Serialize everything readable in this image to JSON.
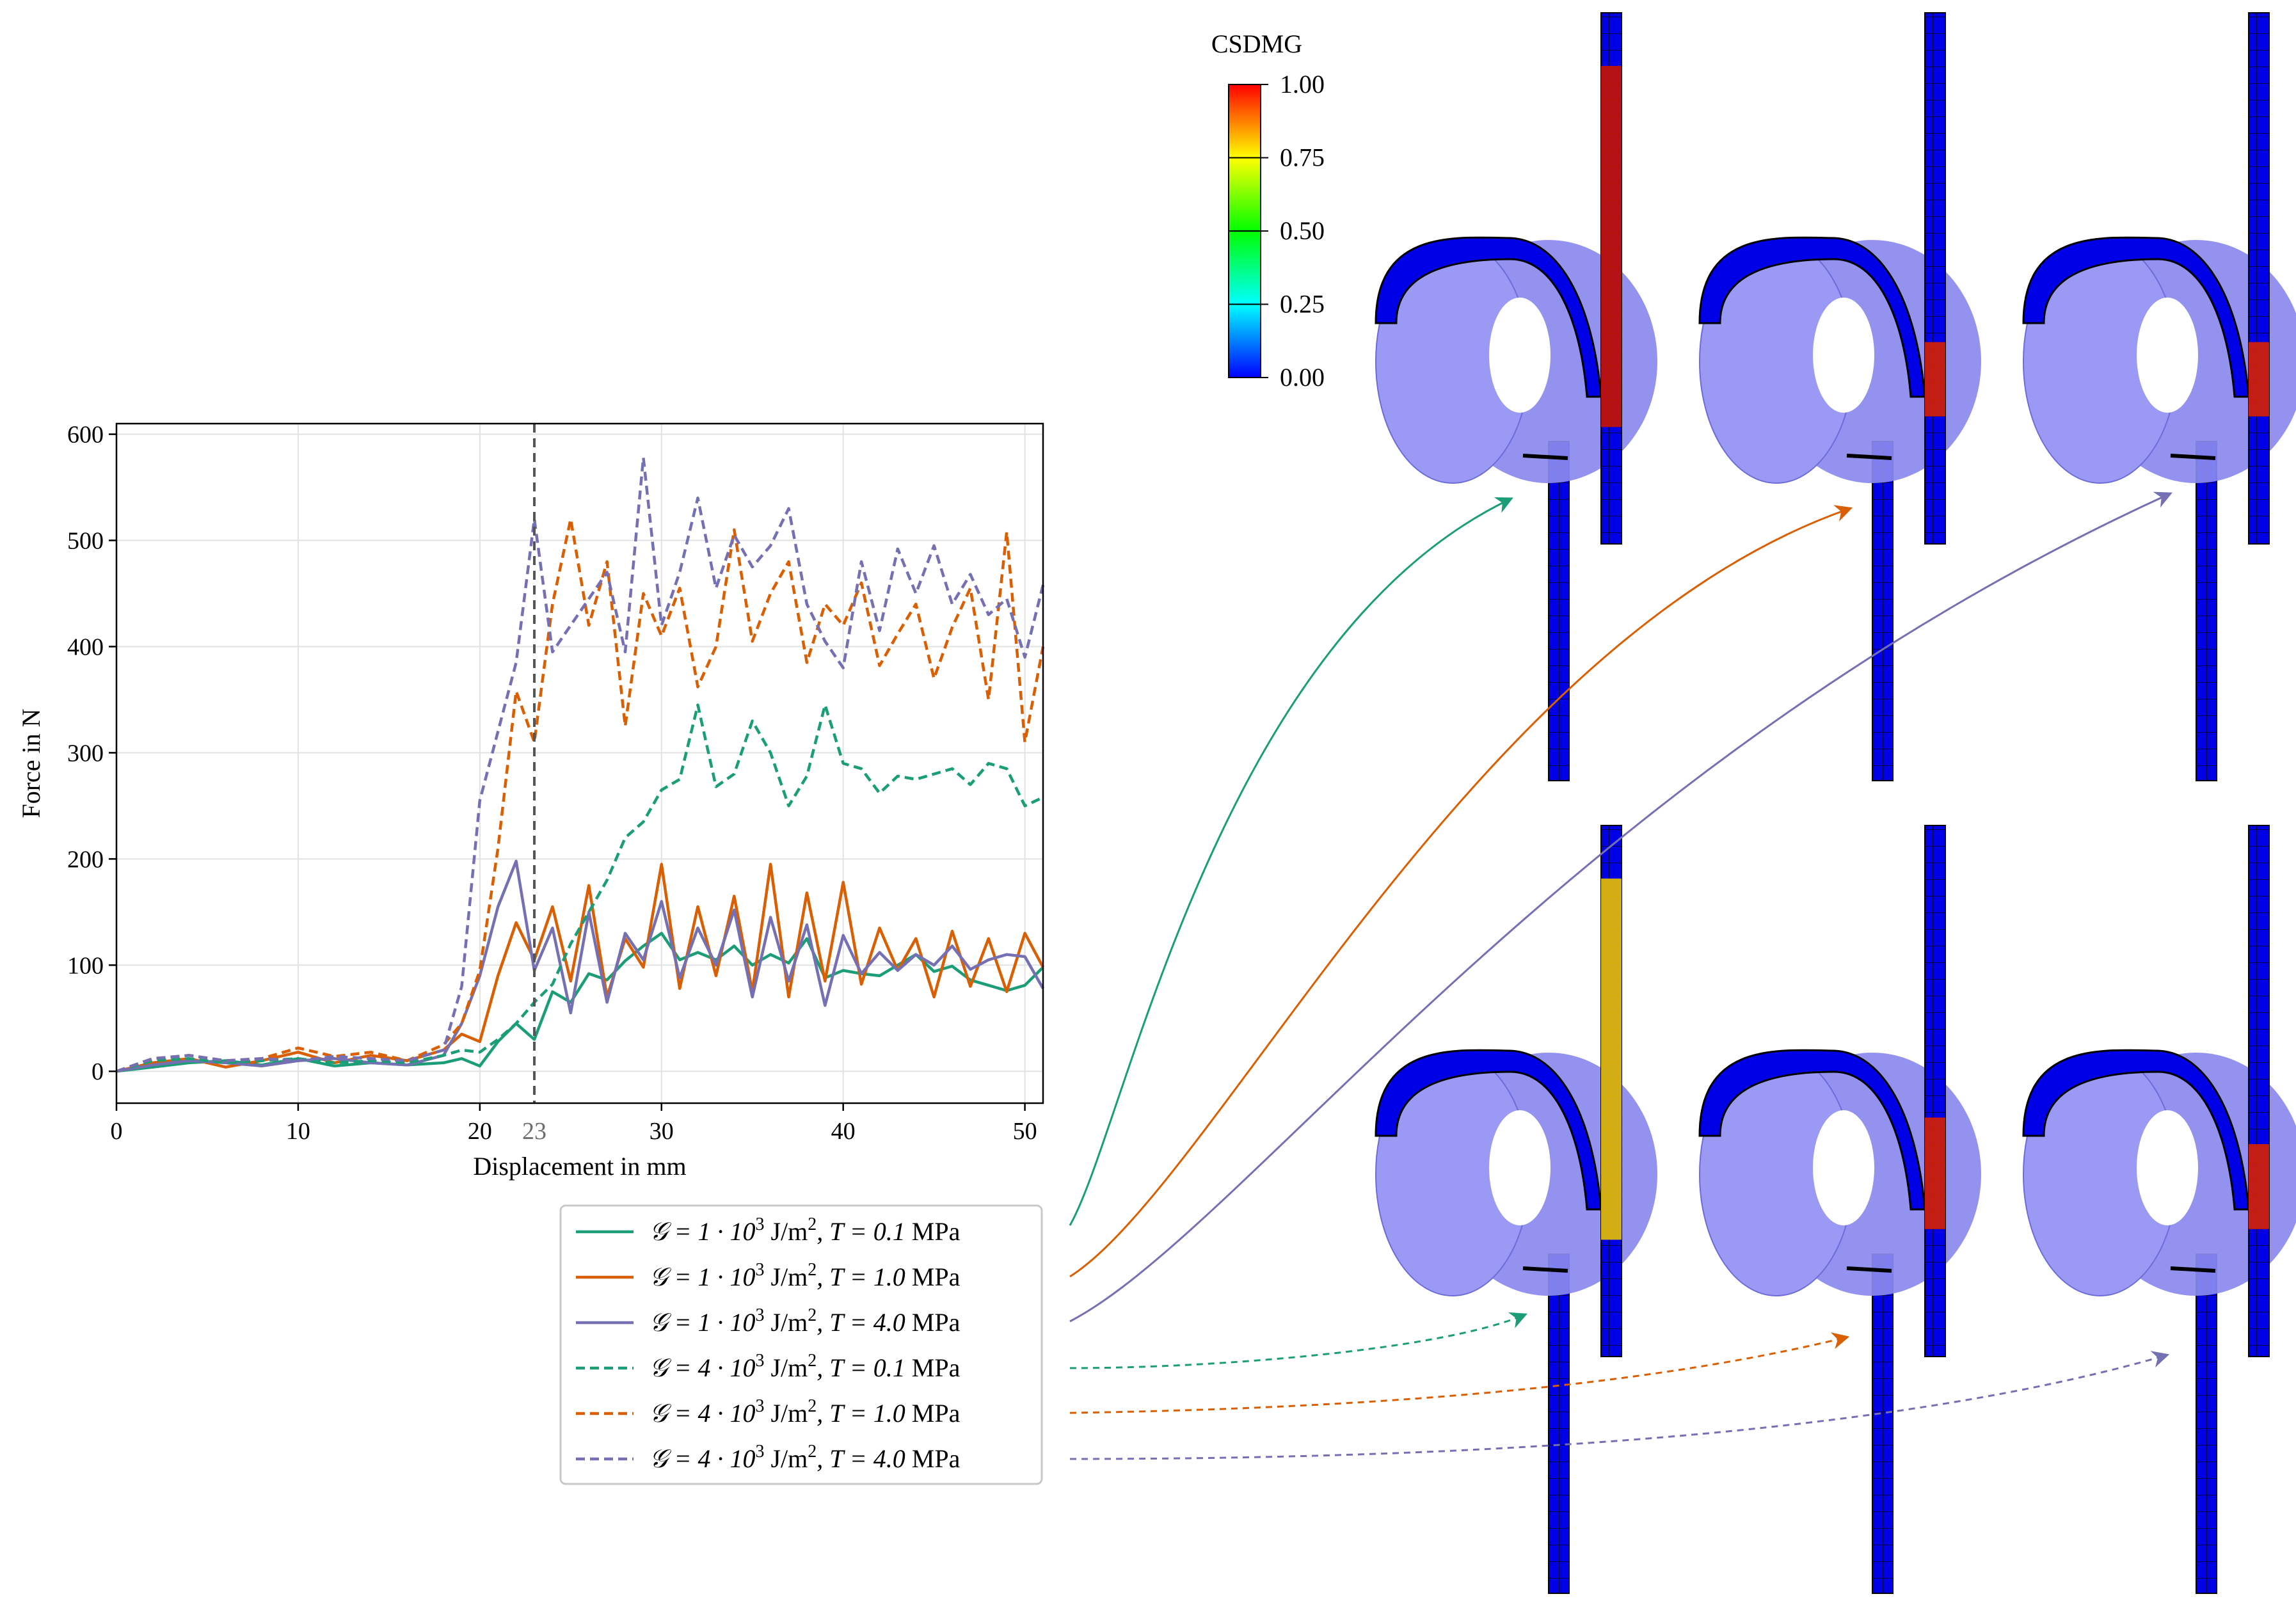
{
  "chart_data": {
    "type": "line",
    "xlabel": "Displacement in mm",
    "ylabel": "Force in N",
    "xlim": [
      0,
      51
    ],
    "ylim": [
      -30,
      610
    ],
    "xticks": [
      0,
      10,
      20,
      30,
      40,
      50
    ],
    "yticks": [
      0,
      100,
      200,
      300,
      400,
      500,
      600
    ],
    "grid": true,
    "marker": {
      "x": 23,
      "label": "23",
      "style": "dashed",
      "color": "#555555"
    },
    "legend_position": "bottom-right, outside plot",
    "series": [
      {
        "name": "G = 1·10³ J/m², T = 0.1 MPa",
        "color": "#1b9e77",
        "dash": "solid",
        "x": [
          0,
          2,
          4,
          6,
          8,
          10,
          12,
          14,
          16,
          18,
          19,
          20,
          21,
          22,
          23,
          24,
          25,
          26,
          27,
          28,
          29,
          30,
          31,
          32,
          33,
          34,
          35,
          36,
          37,
          38,
          39,
          40,
          41,
          42,
          43,
          44,
          45,
          46,
          47,
          48,
          49,
          50,
          51
        ],
        "y": [
          0,
          4,
          8,
          10,
          6,
          12,
          5,
          8,
          6,
          8,
          12,
          5,
          28,
          45,
          30,
          75,
          65,
          92,
          86,
          104,
          118,
          130,
          105,
          112,
          105,
          118,
          100,
          110,
          102,
          125,
          88,
          95,
          92,
          90,
          100,
          110,
          94,
          99,
          86,
          81,
          76,
          81,
          98
        ]
      },
      {
        "name": "G = 1·10³ J/m², T = 1.0 MPa",
        "color": "#d95f02",
        "dash": "solid",
        "x": [
          0,
          2,
          4,
          6,
          8,
          10,
          12,
          14,
          16,
          18,
          19,
          20,
          21,
          22,
          23,
          24,
          25,
          26,
          27,
          28,
          29,
          30,
          31,
          32,
          33,
          34,
          35,
          36,
          37,
          38,
          39,
          40,
          41,
          42,
          43,
          44,
          45,
          46,
          47,
          48,
          49,
          50,
          51
        ],
        "y": [
          0,
          8,
          12,
          4,
          10,
          18,
          8,
          15,
          10,
          20,
          35,
          28,
          90,
          140,
          105,
          155,
          85,
          175,
          70,
          125,
          98,
          195,
          78,
          155,
          90,
          165,
          75,
          195,
          70,
          168,
          85,
          178,
          82,
          135,
          95,
          125,
          70,
          132,
          80,
          125,
          75,
          130,
          98
        ]
      },
      {
        "name": "G = 1·10³ J/m², T = 4.0 MPa",
        "color": "#7570b3",
        "dash": "solid",
        "x": [
          0,
          2,
          4,
          6,
          8,
          10,
          12,
          14,
          16,
          18,
          19,
          20,
          21,
          22,
          23,
          24,
          25,
          26,
          27,
          28,
          29,
          30,
          31,
          32,
          33,
          34,
          35,
          36,
          37,
          38,
          39,
          40,
          41,
          42,
          43,
          44,
          45,
          46,
          47,
          48,
          49,
          50,
          51
        ],
        "y": [
          0,
          6,
          10,
          8,
          5,
          10,
          12,
          8,
          6,
          15,
          45,
          90,
          155,
          198,
          95,
          135,
          55,
          150,
          65,
          130,
          105,
          160,
          88,
          135,
          100,
          152,
          70,
          145,
          85,
          138,
          62,
          128,
          92,
          112,
          95,
          110,
          100,
          118,
          96,
          105,
          110,
          108,
          78
        ]
      },
      {
        "name": "G = 4·10³ J/m², T = 0.1 MPa",
        "color": "#1b9e77",
        "dash": "dashed",
        "x": [
          0,
          2,
          4,
          6,
          8,
          10,
          12,
          14,
          16,
          18,
          19,
          20,
          21,
          22,
          23,
          24,
          25,
          26,
          27,
          28,
          29,
          30,
          31,
          32,
          33,
          34,
          35,
          36,
          37,
          38,
          39,
          40,
          41,
          42,
          43,
          44,
          45,
          46,
          47,
          48,
          49,
          50,
          51
        ],
        "y": [
          0,
          10,
          12,
          8,
          10,
          12,
          8,
          10,
          8,
          15,
          20,
          18,
          30,
          45,
          65,
          82,
          120,
          150,
          180,
          220,
          235,
          265,
          275,
          345,
          268,
          280,
          330,
          300,
          250,
          278,
          345,
          290,
          285,
          262,
          278,
          275,
          280,
          285,
          270,
          290,
          285,
          250,
          258
        ]
      },
      {
        "name": "G = 4·10³ J/m², T = 1.0 MPa",
        "color": "#d95f02",
        "dash": "dashed",
        "x": [
          0,
          2,
          4,
          6,
          8,
          10,
          12,
          14,
          16,
          18,
          19,
          20,
          21,
          22,
          23,
          24,
          25,
          26,
          27,
          28,
          29,
          30,
          31,
          32,
          33,
          34,
          35,
          36,
          37,
          38,
          39,
          40,
          41,
          42,
          43,
          44,
          45,
          46,
          47,
          48,
          49,
          50,
          51
        ],
        "y": [
          0,
          12,
          15,
          10,
          12,
          22,
          14,
          18,
          10,
          25,
          45,
          95,
          210,
          358,
          310,
          440,
          520,
          420,
          480,
          325,
          450,
          410,
          455,
          362,
          400,
          510,
          405,
          450,
          480,
          385,
          440,
          420,
          460,
          382,
          412,
          440,
          370,
          418,
          455,
          350,
          508,
          310,
          400
        ]
      },
      {
        "name": "G = 4·10³ J/m², T = 4.0 MPa",
        "color": "#7570b3",
        "dash": "dashed",
        "x": [
          0,
          2,
          4,
          6,
          8,
          10,
          12,
          14,
          16,
          18,
          19,
          20,
          21,
          22,
          23,
          24,
          25,
          26,
          27,
          28,
          29,
          30,
          31,
          32,
          33,
          34,
          35,
          36,
          37,
          38,
          39,
          40,
          41,
          42,
          43,
          44,
          45,
          46,
          47,
          48,
          49,
          50,
          51
        ],
        "y": [
          0,
          12,
          15,
          10,
          12,
          10,
          14,
          12,
          10,
          20,
          80,
          255,
          320,
          385,
          520,
          395,
          420,
          445,
          470,
          395,
          578,
          420,
          470,
          540,
          455,
          505,
          475,
          495,
          530,
          440,
          405,
          380,
          480,
          415,
          492,
          450,
          495,
          440,
          468,
          430,
          445,
          390,
          458
        ]
      }
    ]
  },
  "legend": {
    "entries": [
      {
        "g_mant": "1",
        "t_val": "0.1"
      },
      {
        "g_mant": "1",
        "t_val": "1.0"
      },
      {
        "g_mant": "1",
        "t_val": "4.0"
      },
      {
        "g_mant": "4",
        "t_val": "0.1"
      },
      {
        "g_mant": "4",
        "t_val": "1.0"
      },
      {
        "g_mant": "4",
        "t_val": "4.0"
      }
    ],
    "g_symbol": "𝒢 = ",
    "times_ten": " · 10",
    "exp": "3",
    "unit_j": "J/m",
    "unit_exp": "2",
    "t_symbol": ", T = ",
    "unit_mpa": "MPa"
  },
  "colorbar": {
    "title": "CSDMG",
    "ticks": [
      "1.00",
      "0.75",
      "0.50",
      "0.25",
      "0.00"
    ],
    "colors": [
      "#ff0000",
      "#ff8000",
      "#ffff00",
      "#80ff00",
      "#00ff00",
      "#00ff80",
      "#00ffff",
      "#0080ff",
      "#0000ff"
    ]
  },
  "colors": {
    "teal": "#1b9e77",
    "orange": "#d95f02",
    "purple": "#7570b3",
    "mesh_blue": "#0000e6",
    "tube": "#8a8aee"
  }
}
